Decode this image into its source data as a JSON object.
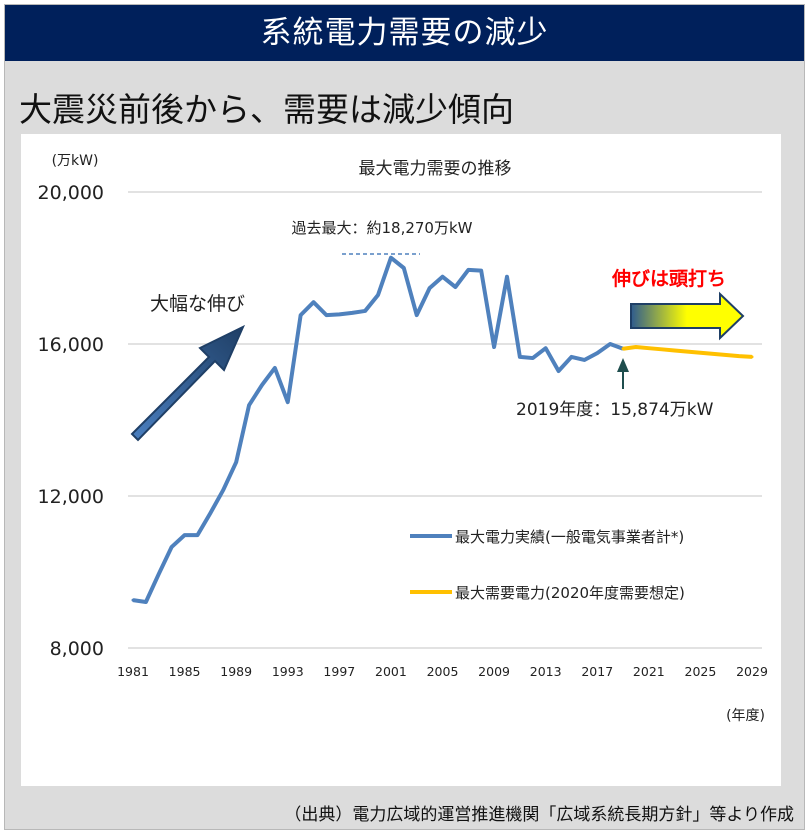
{
  "header": {
    "title": "系統電力需要の減少"
  },
  "subtitle": "大震災前後から、需要は減少傾向",
  "source": "（出典）電力広域的運営推進機関「広域系統長期方針」等より作成",
  "chart_data": {
    "type": "line",
    "title": "最大電力需要の推移",
    "ylabel": "(万kW)",
    "xlabel": "(年度)",
    "ylim": [
      8000,
      20000
    ],
    "xlim": [
      1981,
      2029
    ],
    "yticks": [
      "8,000",
      "12,000",
      "16,000",
      "20,000"
    ],
    "ytick_values": [
      8000,
      12000,
      16000,
      20000
    ],
    "xticks": [
      "1981",
      "1985",
      "1989",
      "1993",
      "1997",
      "2001",
      "2005",
      "2009",
      "2013",
      "2017",
      "2021",
      "2025",
      "2029"
    ],
    "grid": true,
    "legend_position": "bottom-right",
    "series": [
      {
        "name": "最大電力実績(一般電気事業者計*)",
        "color": "#4f81bd",
        "x": [
          1981,
          1982,
          1983,
          1984,
          1985,
          1986,
          1987,
          1988,
          1989,
          1990,
          1991,
          1992,
          1993,
          1994,
          1995,
          1996,
          1997,
          1998,
          1999,
          2000,
          2001,
          2002,
          2003,
          2004,
          2005,
          2006,
          2007,
          2008,
          2009,
          2010,
          2011,
          2012,
          2013,
          2014,
          2015,
          2016,
          2017,
          2018,
          2019
        ],
        "values": [
          9260,
          9210,
          9950,
          10660,
          10970,
          10970,
          11550,
          12160,
          12890,
          14390,
          14920,
          15370,
          14470,
          16760,
          17100,
          16760,
          16780,
          16820,
          16870,
          17290,
          18270,
          18000,
          16760,
          17470,
          17770,
          17500,
          17950,
          17930,
          15920,
          17770,
          15660,
          15630,
          15890,
          15290,
          15660,
          15580,
          15760,
          16000,
          15874
        ]
      },
      {
        "name": "最大需要電力(2020年度需要想定)",
        "color": "#ffc000",
        "x": [
          2019,
          2020,
          2021,
          2022,
          2023,
          2024,
          2025,
          2026,
          2027,
          2028,
          2029
        ],
        "values": [
          15874,
          15920,
          15890,
          15860,
          15830,
          15800,
          15770,
          15740,
          15710,
          15680,
          15660
        ]
      }
    ],
    "annotations": {
      "peak": "過去最大：約18,270万kW",
      "latest": "2019年度：15,874万kW",
      "growth": "大幅な伸び",
      "plateau": "伸びは頭打ち"
    },
    "colors": {
      "header": "#00205b",
      "plateau_text": "#ff0000",
      "arrow": "#2e5b8e"
    }
  }
}
